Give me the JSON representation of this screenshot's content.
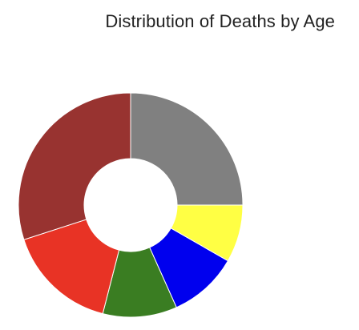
{
  "chart_data": {
    "type": "pie",
    "title": "Distribution of Deaths by Age",
    "categories": [
      "",
      "",
      "",
      "",
      "",
      ""
    ],
    "values": [
      25,
      8.3,
      10,
      10.7,
      16,
      30
    ],
    "colors": [
      "#808080",
      "#ffff44",
      "#0000ee",
      "#3a7d22",
      "#e83325",
      "#983330"
    ],
    "donut": true,
    "start_angle_deg": 0,
    "direction": "clockwise"
  },
  "colors": {
    "background": "#ffffff",
    "title": "#222222",
    "separator": "#ffffff"
  }
}
